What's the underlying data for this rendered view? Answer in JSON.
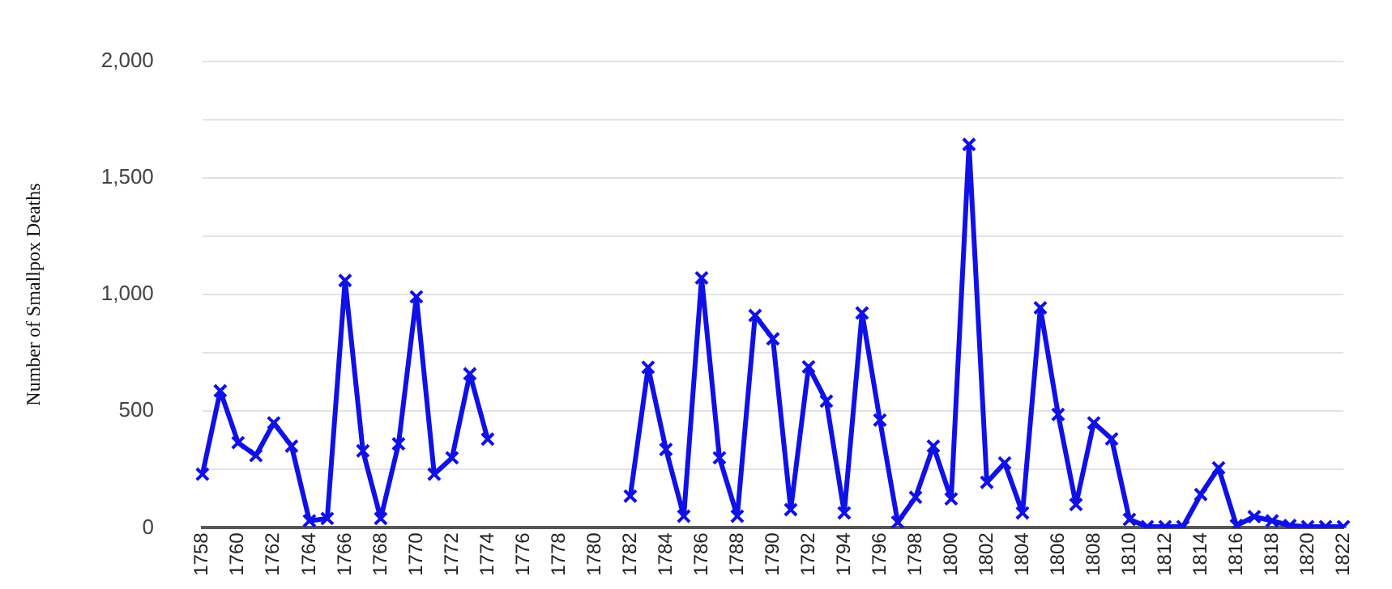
{
  "chart_data": {
    "type": "line",
    "ylabel": "Number of Smallpox Deaths",
    "categories": [
      "1758",
      null,
      "1760",
      null,
      "1762",
      null,
      "1764",
      null,
      "1766",
      null,
      "1768",
      null,
      "1770",
      null,
      "1772",
      null,
      "1774",
      null,
      "1776",
      null,
      "1778",
      null,
      "1780",
      null,
      "1782",
      null,
      "1784",
      null,
      "1786",
      null,
      "1788",
      null,
      "1790",
      null,
      "1792",
      null,
      "1794",
      null,
      "1796",
      null,
      "1798",
      null,
      "1800",
      null,
      "1802",
      null,
      "1804",
      null,
      "1806",
      null,
      "1808",
      null,
      "1810",
      null,
      "1812",
      null,
      "1814",
      null,
      "1816",
      null,
      "1818",
      null,
      "1820",
      null,
      "1822"
    ],
    "series": [
      {
        "color": "#1010e8",
        "values": [
          230,
          587,
          365,
          310,
          450,
          350,
          30,
          40,
          1060,
          330,
          40,
          360,
          990,
          230,
          300,
          660,
          380,
          null,
          null,
          null,
          null,
          null,
          null,
          null,
          136,
          688,
          336,
          50,
          1071,
          300,
          50,
          910,
          810,
          78,
          690,
          543,
          64,
          921,
          462,
          24,
          131,
          350,
          124,
          1643,
          195,
          278,
          64,
          943,
          486,
          100,
          450,
          381,
          36,
          5,
          5,
          5,
          143,
          257,
          10,
          48,
          30,
          10,
          5,
          5,
          5
        ]
      }
    ],
    "ylim": [
      0,
      2000
    ],
    "yticks": [
      {
        "value": 0,
        "label": "0"
      },
      {
        "value": 250,
        "label": null
      },
      {
        "value": 500,
        "label": "500"
      },
      {
        "value": 750,
        "label": null
      },
      {
        "value": 1000,
        "label": "1,000"
      },
      {
        "value": 1250,
        "label": null
      },
      {
        "value": 1500,
        "label": "1,500"
      },
      {
        "value": 1750,
        "label": null
      },
      {
        "value": 2000,
        "label": "2,000"
      }
    ],
    "grid": "y",
    "legend": false,
    "marker": "cross",
    "line_style": "solid"
  }
}
